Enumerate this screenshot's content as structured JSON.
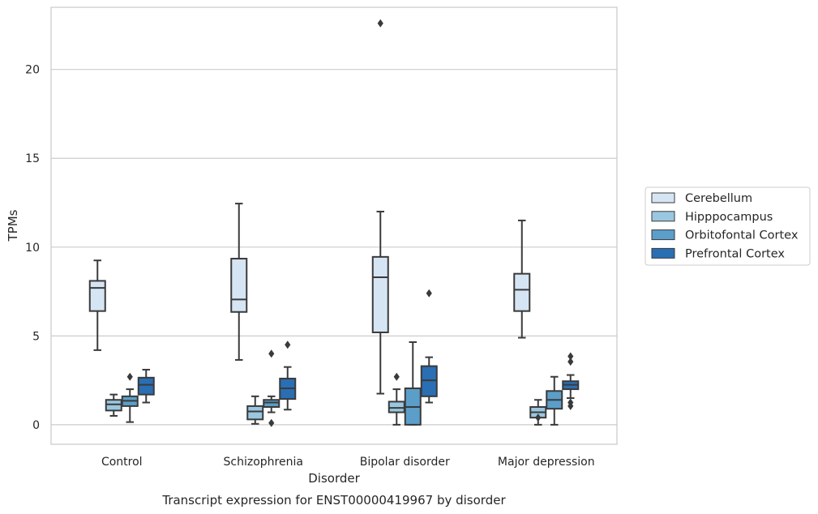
{
  "chart_data": {
    "type": "box",
    "caption": "Transcript expression for ENST00000419967 by disorder",
    "xlabel": "Disorder",
    "ylabel": "TPMs",
    "categories": [
      "Control",
      "Schizophrenia",
      "Bipolar disorder",
      "Major depression"
    ],
    "yticks": [
      0,
      5,
      10,
      15,
      20
    ],
    "ylim": [
      -1.1,
      23.5
    ],
    "grid": "horizontal",
    "legend_position": "right",
    "series": [
      {
        "name": "Cerebellum",
        "color": "#d6e5f4",
        "boxes": [
          {
            "whislo": 4.2,
            "q1": 6.4,
            "med": 7.7,
            "q3": 8.1,
            "whishi": 9.25,
            "fliers": []
          },
          {
            "whislo": 3.65,
            "q1": 6.35,
            "med": 7.05,
            "q3": 9.35,
            "whishi": 12.45,
            "fliers": []
          },
          {
            "whislo": 1.75,
            "q1": 5.2,
            "med": 8.3,
            "q3": 9.45,
            "whishi": 12.0,
            "fliers": [
              22.6
            ]
          },
          {
            "whislo": 4.9,
            "q1": 6.4,
            "med": 7.6,
            "q3": 8.5,
            "whishi": 11.5,
            "fliers": []
          }
        ]
      },
      {
        "name": "Hipppocampus",
        "color": "#9ac7e0",
        "boxes": [
          {
            "whislo": 0.5,
            "q1": 0.8,
            "med": 1.15,
            "q3": 1.4,
            "whishi": 1.7,
            "fliers": []
          },
          {
            "whislo": 0.05,
            "q1": 0.3,
            "med": 0.75,
            "q3": 1.05,
            "whishi": 1.6,
            "fliers": []
          },
          {
            "whislo": 0.0,
            "q1": 0.7,
            "med": 0.95,
            "q3": 1.3,
            "whishi": 2.0,
            "fliers": [
              2.7
            ]
          },
          {
            "whislo": 0.0,
            "q1": 0.4,
            "med": 0.7,
            "q3": 1.0,
            "whishi": 1.4,
            "fliers": [
              0.4
            ]
          }
        ]
      },
      {
        "name": "Orbitofontal Cortex",
        "color": "#5b9ec9",
        "boxes": [
          {
            "whislo": 0.15,
            "q1": 1.05,
            "med": 1.35,
            "q3": 1.6,
            "whishi": 2.0,
            "fliers": [
              2.7
            ]
          },
          {
            "whislo": 0.7,
            "q1": 1.0,
            "med": 1.25,
            "q3": 1.4,
            "whishi": 1.6,
            "fliers": [
              4.0,
              0.1
            ]
          },
          {
            "whislo": 0.0,
            "q1": 0.0,
            "med": 1.0,
            "q3": 2.05,
            "whishi": 4.65,
            "fliers": []
          },
          {
            "whislo": 0.0,
            "q1": 0.9,
            "med": 1.4,
            "q3": 1.9,
            "whishi": 2.7,
            "fliers": []
          }
        ]
      },
      {
        "name": "Prefrontal Cortex",
        "color": "#2a6eb4",
        "boxes": [
          {
            "whislo": 1.25,
            "q1": 1.7,
            "med": 2.25,
            "q3": 2.65,
            "whishi": 3.1,
            "fliers": []
          },
          {
            "whislo": 0.85,
            "q1": 1.45,
            "med": 2.05,
            "q3": 2.6,
            "whishi": 3.25,
            "fliers": [
              4.5
            ]
          },
          {
            "whislo": 1.25,
            "q1": 1.6,
            "med": 2.5,
            "q3": 3.3,
            "whishi": 3.8,
            "fliers": [
              7.4
            ]
          },
          {
            "whislo": 1.5,
            "q1": 2.0,
            "med": 2.25,
            "q3": 2.45,
            "whishi": 2.8,
            "fliers": [
              3.85,
              3.55,
              1.25,
              1.05
            ]
          }
        ]
      }
    ]
  }
}
